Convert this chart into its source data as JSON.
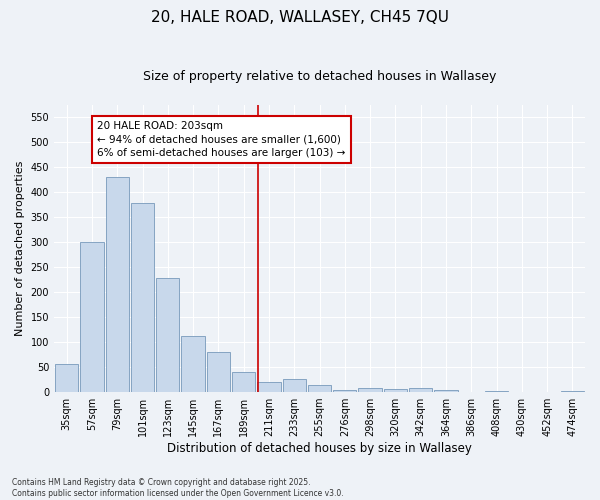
{
  "title": "20, HALE ROAD, WALLASEY, CH45 7QU",
  "subtitle": "Size of property relative to detached houses in Wallasey",
  "xlabel": "Distribution of detached houses by size in Wallasey",
  "ylabel": "Number of detached properties",
  "bin_labels": [
    "35sqm",
    "57sqm",
    "79sqm",
    "101sqm",
    "123sqm",
    "145sqm",
    "167sqm",
    "189sqm",
    "211sqm",
    "233sqm",
    "255sqm",
    "276sqm",
    "298sqm",
    "320sqm",
    "342sqm",
    "364sqm",
    "386sqm",
    "408sqm",
    "430sqm",
    "452sqm",
    "474sqm"
  ],
  "bin_values": [
    57,
    300,
    430,
    378,
    228,
    113,
    80,
    40,
    20,
    27,
    15,
    5,
    9,
    6,
    8,
    4,
    0,
    3,
    0,
    0,
    2
  ],
  "bar_color": "#c8d8eb",
  "bar_edge_color": "#7799bb",
  "vline_color": "#cc0000",
  "vline_x": 7.575,
  "annotation_title": "20 HALE ROAD: 203sqm",
  "annotation_line1": "← 94% of detached houses are smaller (1,600)",
  "annotation_line2": "6% of semi-detached houses are larger (103) →",
  "annotation_box_color": "#cc0000",
  "footnote1": "Contains HM Land Registry data © Crown copyright and database right 2025.",
  "footnote2": "Contains public sector information licensed under the Open Government Licence v3.0.",
  "ylim": [
    0,
    575
  ],
  "yticks": [
    0,
    50,
    100,
    150,
    200,
    250,
    300,
    350,
    400,
    450,
    500,
    550
  ],
  "background_color": "#eef2f7",
  "plot_bg_color": "#eef2f7",
  "grid_color": "#ffffff",
  "title_fontsize": 11,
  "subtitle_fontsize": 9,
  "axis_label_fontsize": 8,
  "tick_fontsize": 7,
  "annotation_fontsize": 7.5
}
